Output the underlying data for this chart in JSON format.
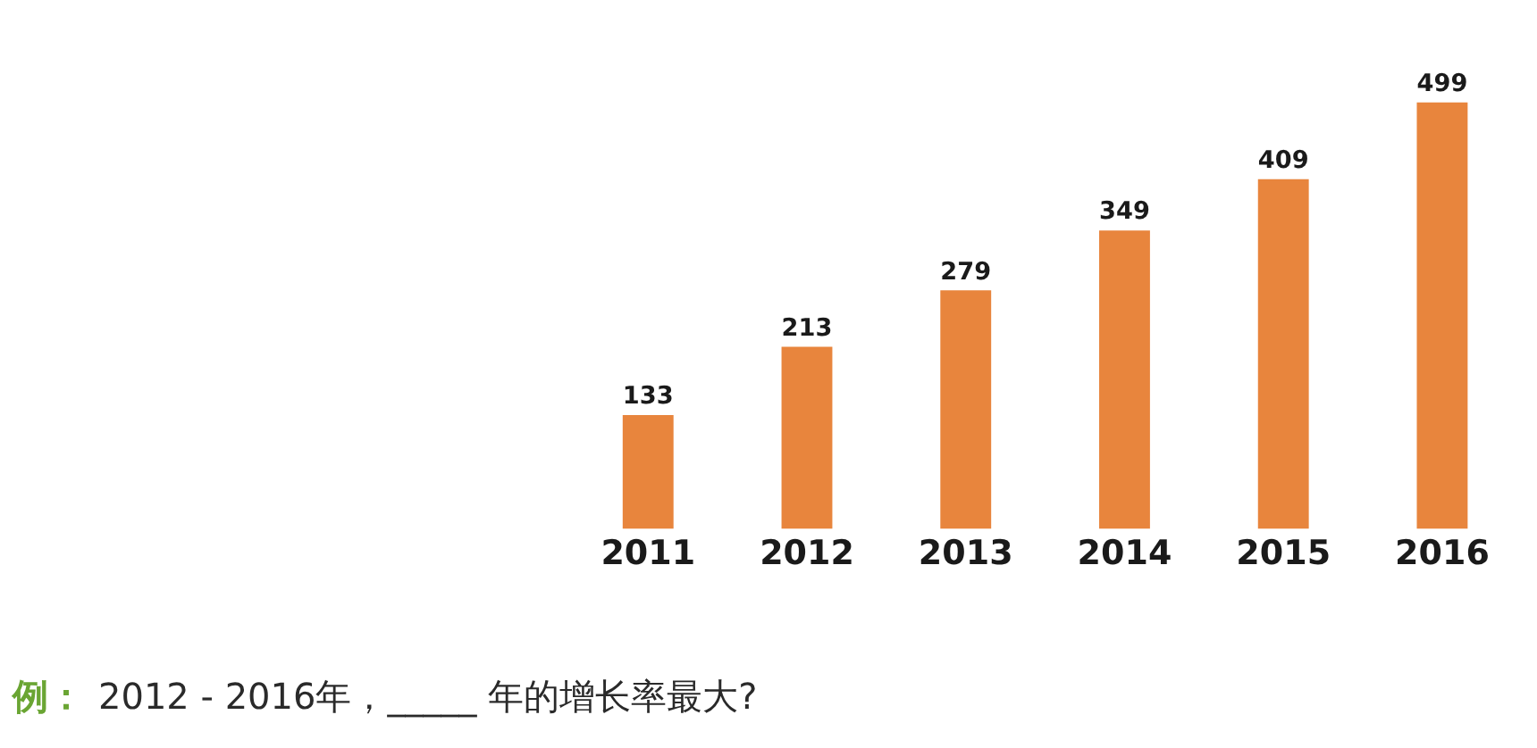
{
  "chart_data": {
    "type": "bar",
    "categories": [
      "2011",
      "2012",
      "2013",
      "2014",
      "2015",
      "2016"
    ],
    "values": [
      133,
      213,
      279,
      349,
      409,
      499
    ],
    "color": "#e8853d",
    "data_labels": true,
    "legend": false,
    "annotations": [
      "例：",
      "2012 - 2016年，_____ 年的增长率最大?"
    ]
  }
}
